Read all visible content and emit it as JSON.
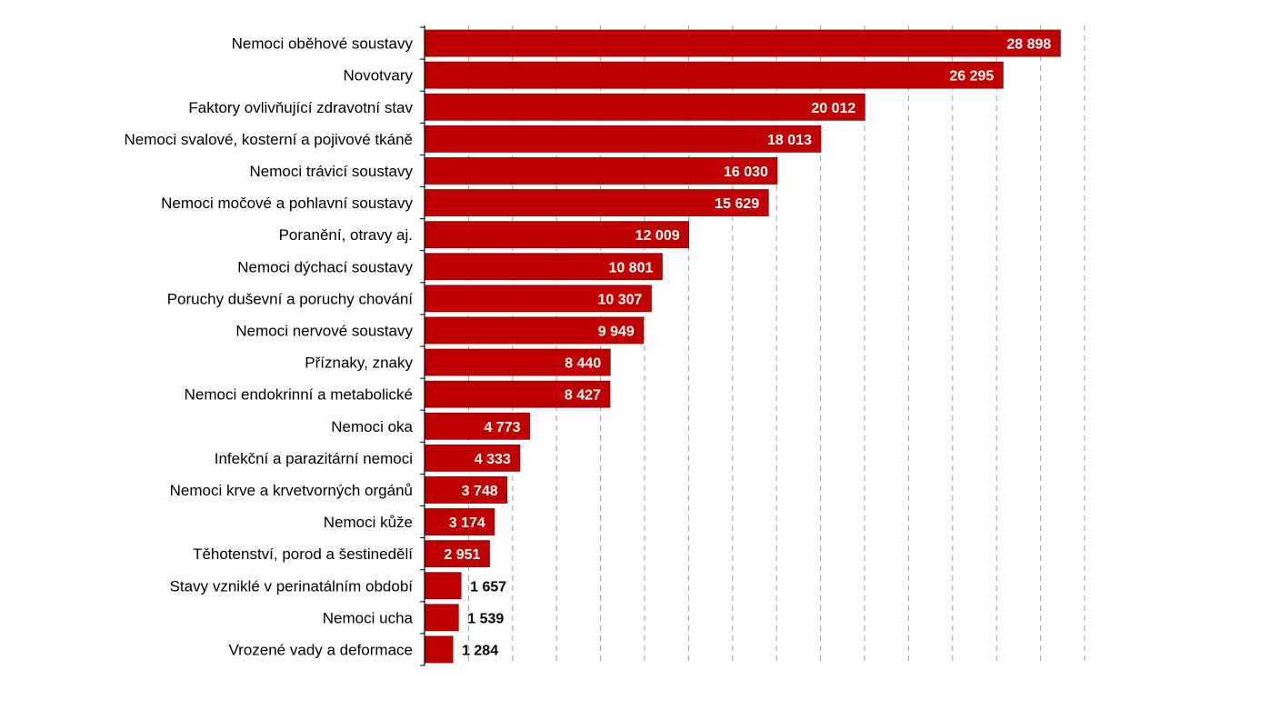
{
  "chart_data": {
    "type": "bar",
    "orientation": "horizontal",
    "categories": [
      "Nemoci oběhové soustavy",
      "Novotvary",
      "Faktory ovlivňující zdravotní stav",
      "Nemoci svalové, kosterní a pojivové tkáně",
      "Nemoci trávicí soustavy",
      "Nemoci močové a pohlavní soustavy",
      "Poranění, otravy aj.",
      "Nemoci dýchací soustavy",
      "Poruchy duševní a poruchy chování",
      "Nemoci nervové soustavy",
      "Příznaky, znaky",
      "Nemoci endokrinní a metabolické",
      "Nemoci oka",
      "Infekční a parazitární nemoci",
      "Nemoci krve a krvetvorných orgánů",
      "Nemoci kůže",
      "Těhotenství, porod a šestinedělí",
      "Stavy vzniklé v perinatálním období",
      "Nemoci ucha",
      "Vrozené vady a deformace"
    ],
    "values": [
      28898,
      26295,
      20012,
      18013,
      16030,
      15629,
      12009,
      10801,
      10307,
      9949,
      8440,
      8427,
      4773,
      4333,
      3748,
      3174,
      2951,
      1657,
      1539,
      1284
    ],
    "value_labels": [
      "28 898",
      "26 295",
      "20 012",
      "18 013",
      "16 030",
      "15 629",
      "12 009",
      "10 801",
      "10 307",
      "9 949",
      "8 440",
      "8 427",
      "4 773",
      "4 333",
      "3 748",
      "3 174",
      "2 951",
      "1 657",
      "1 539",
      "1 284"
    ],
    "xlim": [
      0,
      30000
    ],
    "grid": "vertical dashed",
    "legend": "none",
    "colors": {
      "bar": "#c00000",
      "bar_edge": "#7a0000",
      "grid": "#a0a0a0",
      "axis": "#000000",
      "label_inside": "#ffffff",
      "label_outside": "#000000"
    }
  }
}
